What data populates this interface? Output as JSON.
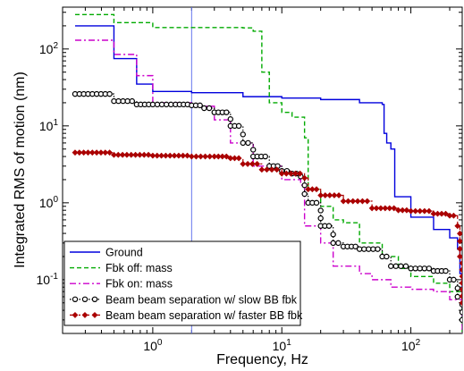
{
  "chart_data": {
    "type": "line",
    "title": "",
    "xlabel": "Frequency, Hz",
    "ylabel": "Integrated RMS of motion (nm)",
    "xscale": "log",
    "yscale": "log",
    "xlim": [
      0.2,
      250
    ],
    "ylim": [
      0.02,
      350
    ],
    "xticks": [
      {
        "value": 1,
        "base": "10",
        "exp": "0"
      },
      {
        "value": 10,
        "base": "10",
        "exp": "1"
      },
      {
        "value": 100,
        "base": "10",
        "exp": "2"
      }
    ],
    "yticks": [
      {
        "value": 0.1,
        "base": "10",
        "exp": "-1"
      },
      {
        "value": 1,
        "base": "10",
        "exp": "0"
      },
      {
        "value": 10,
        "base": "10",
        "exp": "1"
      },
      {
        "value": 100,
        "base": "10",
        "exp": "2"
      }
    ],
    "vline_x": 2,
    "legend_position": "bottom-left",
    "series": [
      {
        "name": "Ground",
        "color": "#0000dd",
        "dash": "solid",
        "marker": "none",
        "points": [
          [
            0.25,
            200
          ],
          [
            0.5,
            75
          ],
          [
            0.75,
            35
          ],
          [
            1.0,
            28
          ],
          [
            2,
            27
          ],
          [
            5,
            24
          ],
          [
            10,
            23
          ],
          [
            20,
            22
          ],
          [
            40,
            20
          ],
          [
            60,
            19
          ],
          [
            62,
            8
          ],
          [
            65,
            6
          ],
          [
            70,
            5
          ],
          [
            75,
            1.2
          ],
          [
            100,
            0.65
          ],
          [
            150,
            0.45
          ],
          [
            200,
            0.35
          ],
          [
            230,
            0.25
          ],
          [
            240,
            0.12
          ],
          [
            250,
            0.03
          ]
        ]
      },
      {
        "name": "Fbk off: mass",
        "color": "#00aa00",
        "dash": "dashed",
        "marker": "none",
        "points": [
          [
            0.25,
            280
          ],
          [
            0.5,
            220
          ],
          [
            1.0,
            190
          ],
          [
            2,
            190
          ],
          [
            5,
            188
          ],
          [
            6,
            170
          ],
          [
            7,
            50
          ],
          [
            8,
            20
          ],
          [
            10,
            15
          ],
          [
            12,
            13
          ],
          [
            15,
            7
          ],
          [
            16,
            1.5
          ],
          [
            20,
            0.9
          ],
          [
            25,
            0.6
          ],
          [
            30,
            0.55
          ],
          [
            40,
            0.3
          ],
          [
            60,
            0.2
          ],
          [
            80,
            0.14
          ],
          [
            100,
            0.11
          ],
          [
            150,
            0.09
          ],
          [
            200,
            0.07
          ],
          [
            250,
            0.02
          ]
        ]
      },
      {
        "name": "Fbk on: mass",
        "color": "#cc00cc",
        "dash": "dashdot",
        "marker": "none",
        "points": [
          [
            0.25,
            130
          ],
          [
            0.5,
            85
          ],
          [
            0.75,
            45
          ],
          [
            1.0,
            20
          ],
          [
            2,
            18
          ],
          [
            3,
            12
          ],
          [
            4,
            6
          ],
          [
            6,
            3
          ],
          [
            10,
            2
          ],
          [
            14,
            1.7
          ],
          [
            15,
            0.5
          ],
          [
            20,
            0.3
          ],
          [
            25,
            0.15
          ],
          [
            40,
            0.12
          ],
          [
            50,
            0.1
          ],
          [
            70,
            0.08
          ],
          [
            100,
            0.075
          ],
          [
            150,
            0.07
          ],
          [
            200,
            0.055
          ],
          [
            250,
            0.02
          ]
        ]
      },
      {
        "name": "Beam beam separation w/ slow BB fbk",
        "color": "#000000",
        "dash": "dotted",
        "marker": "circle",
        "points": [
          [
            0.25,
            26
          ],
          [
            0.5,
            21
          ],
          [
            0.75,
            19
          ],
          [
            1.0,
            19
          ],
          [
            1.5,
            19
          ],
          [
            2,
            18.5
          ],
          [
            2.5,
            17
          ],
          [
            3,
            15
          ],
          [
            4,
            10
          ],
          [
            5,
            6
          ],
          [
            6,
            4
          ],
          [
            8,
            3
          ],
          [
            10,
            2.6
          ],
          [
            12,
            2.4
          ],
          [
            14,
            2.2
          ],
          [
            15,
            1.3
          ],
          [
            16,
            1.0
          ],
          [
            20,
            0.5
          ],
          [
            25,
            0.3
          ],
          [
            30,
            0.27
          ],
          [
            40,
            0.25
          ],
          [
            60,
            0.2
          ],
          [
            70,
            0.15
          ],
          [
            100,
            0.14
          ],
          [
            150,
            0.13
          ],
          [
            200,
            0.1
          ],
          [
            230,
            0.06
          ],
          [
            250,
            0.03
          ]
        ]
      },
      {
        "name": "Beam beam separation w/ faster BB  fbk",
        "color": "#aa0000",
        "dash": "dashdot",
        "marker": "diamond",
        "points": [
          [
            0.25,
            4.5
          ],
          [
            0.5,
            4.2
          ],
          [
            1.0,
            4.1
          ],
          [
            2,
            4.0
          ],
          [
            3,
            4.0
          ],
          [
            4,
            3.8
          ],
          [
            5,
            3.2
          ],
          [
            7,
            2.7
          ],
          [
            10,
            2.4
          ],
          [
            15,
            2.1
          ],
          [
            16,
            1.5
          ],
          [
            20,
            1.25
          ],
          [
            30,
            1.05
          ],
          [
            50,
            0.85
          ],
          [
            80,
            0.8
          ],
          [
            100,
            0.78
          ],
          [
            150,
            0.72
          ],
          [
            200,
            0.68
          ],
          [
            230,
            0.5
          ],
          [
            240,
            0.2
          ],
          [
            250,
            0.05
          ]
        ]
      }
    ]
  }
}
